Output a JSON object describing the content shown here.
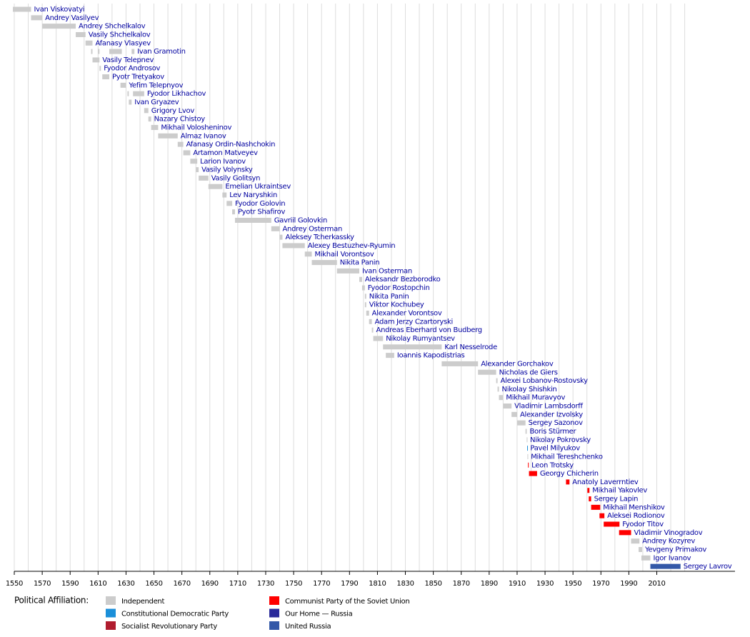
{
  "chart_data": {
    "type": "timeline",
    "xlim": [
      1550,
      2066
    ],
    "xticks": [
      1550,
      1570,
      1590,
      1610,
      1630,
      1650,
      1670,
      1690,
      1710,
      1730,
      1750,
      1770,
      1790,
      1810,
      1830,
      1850,
      1870,
      1890,
      1910,
      1930,
      1950,
      1970,
      1990,
      2010
    ],
    "xgrid": [
      1550,
      1560,
      1570,
      1580,
      1590,
      1600,
      1610,
      1620,
      1630,
      1640,
      1650,
      1660,
      1670,
      1680,
      1690,
      1700,
      1710,
      1720,
      1730,
      1740,
      1750,
      1760,
      1770,
      1780,
      1790,
      1800,
      1810,
      1820,
      1830,
      1840,
      1850,
      1860,
      1870,
      1880,
      1890,
      1900,
      1910,
      1920,
      1930,
      1940,
      1950,
      1960,
      1970,
      1980,
      1990,
      2000,
      2010,
      2020,
      2030
    ],
    "rows": [
      {
        "name": "Ivan Viskovatyi",
        "color": "#cccccc",
        "segments": [
          [
            1549,
            1562
          ]
        ]
      },
      {
        "name": "Andrey Vasilyev",
        "color": "#cccccc",
        "segments": [
          [
            1562,
            1570
          ]
        ]
      },
      {
        "name": "Andrey Shchelkalov",
        "color": "#cccccc",
        "segments": [
          [
            1570,
            1594
          ]
        ]
      },
      {
        "name": "Vasily Shchelkalov",
        "color": "#cccccc",
        "segments": [
          [
            1594,
            1601
          ]
        ]
      },
      {
        "name": "Afanasy Vlasyev",
        "color": "#cccccc",
        "segments": [
          [
            1601,
            1606
          ]
        ]
      },
      {
        "name": "Ivan Gramotin",
        "color": "#cccccc",
        "segments": [
          [
            1605,
            1606
          ],
          [
            1610,
            1611
          ],
          [
            1618,
            1627
          ],
          [
            1634,
            1636
          ]
        ]
      },
      {
        "name": "Vasily Telepnev",
        "color": "#cccccc",
        "segments": [
          [
            1606,
            1611
          ]
        ]
      },
      {
        "name": "Fyodor Androsov",
        "color": "#cccccc",
        "segments": [
          [
            1611,
            1612
          ]
        ]
      },
      {
        "name": "Pyotr Tretyakov",
        "color": "#cccccc",
        "segments": [
          [
            1613,
            1618
          ]
        ]
      },
      {
        "name": "Yefim Telepnyov",
        "color": "#cccccc",
        "segments": [
          [
            1626,
            1630
          ]
        ]
      },
      {
        "name": "Fyodor Likhachov",
        "color": "#cccccc",
        "segments": [
          [
            1631,
            1632
          ],
          [
            1635,
            1643
          ]
        ]
      },
      {
        "name": "Ivan Gryazev",
        "color": "#cccccc",
        "segments": [
          [
            1632,
            1634
          ]
        ]
      },
      {
        "name": "Grigory Lvov",
        "color": "#cccccc",
        "segments": [
          [
            1643,
            1646
          ]
        ]
      },
      {
        "name": "Nazary Chistoy",
        "color": "#cccccc",
        "segments": [
          [
            1646,
            1648
          ]
        ]
      },
      {
        "name": "Mikhail Volosheninov",
        "color": "#cccccc",
        "segments": [
          [
            1648,
            1653
          ]
        ]
      },
      {
        "name": "Almaz Ivanov",
        "color": "#cccccc",
        "segments": [
          [
            1653,
            1667
          ]
        ]
      },
      {
        "name": "Afanasy Ordin-Nashchokin",
        "color": "#cccccc",
        "segments": [
          [
            1667,
            1671
          ]
        ]
      },
      {
        "name": "Artamon Matveyev",
        "color": "#cccccc",
        "segments": [
          [
            1671,
            1676
          ]
        ]
      },
      {
        "name": "Larion Ivanov",
        "color": "#cccccc",
        "segments": [
          [
            1676,
            1681
          ]
        ]
      },
      {
        "name": "Vasily Volynsky",
        "color": "#cccccc",
        "segments": [
          [
            1680,
            1682
          ]
        ]
      },
      {
        "name": "Vasily Golitsyn",
        "color": "#cccccc",
        "segments": [
          [
            1682,
            1689
          ]
        ]
      },
      {
        "name": "Emelian Ukraintsev",
        "color": "#cccccc",
        "segments": [
          [
            1689,
            1699
          ]
        ]
      },
      {
        "name": "Lev Naryshkin",
        "color": "#cccccc",
        "segments": [
          [
            1699,
            1702
          ]
        ]
      },
      {
        "name": "Fyodor Golovin",
        "color": "#cccccc",
        "segments": [
          [
            1702,
            1706
          ]
        ]
      },
      {
        "name": "Pyotr Shafirov",
        "color": "#cccccc",
        "segments": [
          [
            1706,
            1708
          ]
        ]
      },
      {
        "name": "Gavriil Golovkin",
        "color": "#cccccc",
        "segments": [
          [
            1708,
            1734
          ]
        ]
      },
      {
        "name": "Andrey Osterman",
        "color": "#cccccc",
        "segments": [
          [
            1734,
            1740
          ]
        ]
      },
      {
        "name": "Aleksey Tcherkassky",
        "color": "#cccccc",
        "segments": [
          [
            1740,
            1742
          ]
        ]
      },
      {
        "name": "Alexey Bestuzhev-Ryumin",
        "color": "#cccccc",
        "segments": [
          [
            1742,
            1758
          ]
        ]
      },
      {
        "name": "Mikhail Vorontsov",
        "color": "#cccccc",
        "segments": [
          [
            1758,
            1763
          ]
        ]
      },
      {
        "name": "Nikita Panin",
        "color": "#cccccc",
        "segments": [
          [
            1763,
            1781
          ]
        ]
      },
      {
        "name": "Ivan Osterman",
        "color": "#cccccc",
        "segments": [
          [
            1781,
            1797
          ]
        ]
      },
      {
        "name": "Aleksandr Bezborodko",
        "color": "#cccccc",
        "segments": [
          [
            1797,
            1799
          ]
        ]
      },
      {
        "name": "Fyodor Rostopchin",
        "color": "#cccccc",
        "segments": [
          [
            1799,
            1801
          ]
        ]
      },
      {
        "name": "Nikita Panin",
        "color": "#cccccc",
        "segments": [
          [
            1801,
            1802
          ]
        ]
      },
      {
        "name": "Viktor Kochubey",
        "color": "#cccccc",
        "segments": [
          [
            1801,
            1802
          ]
        ]
      },
      {
        "name": "Alexander Vorontsov",
        "color": "#cccccc",
        "segments": [
          [
            1802,
            1804
          ]
        ]
      },
      {
        "name": "Adam Jerzy Czartoryski",
        "color": "#cccccc",
        "segments": [
          [
            1804,
            1806
          ]
        ]
      },
      {
        "name": "Andreas Eberhard von Budberg",
        "color": "#cccccc",
        "segments": [
          [
            1806,
            1807
          ]
        ]
      },
      {
        "name": "Nikolay Rumyantsev",
        "color": "#cccccc",
        "segments": [
          [
            1807,
            1814
          ]
        ]
      },
      {
        "name": "Karl Nesselrode",
        "color": "#cccccc",
        "segments": [
          [
            1814,
            1856
          ]
        ]
      },
      {
        "name": "Ioannis Kapodistrias",
        "color": "#cccccc",
        "segments": [
          [
            1816,
            1822
          ]
        ]
      },
      {
        "name": "Alexander Gorchakov",
        "color": "#cccccc",
        "segments": [
          [
            1856,
            1882
          ]
        ]
      },
      {
        "name": "Nicholas de Giers",
        "color": "#cccccc",
        "segments": [
          [
            1882,
            1895
          ]
        ]
      },
      {
        "name": "Alexei Lobanov-Rostovsky",
        "color": "#cccccc",
        "segments": [
          [
            1895,
            1896
          ]
        ]
      },
      {
        "name": "Nikolay Shishkin",
        "color": "#cccccc",
        "segments": [
          [
            1896,
            1897
          ]
        ]
      },
      {
        "name": "Mikhail Muravyov",
        "color": "#cccccc",
        "segments": [
          [
            1897,
            1900
          ]
        ]
      },
      {
        "name": "Vladimir Lambsdorff",
        "color": "#cccccc",
        "segments": [
          [
            1900,
            1906
          ]
        ]
      },
      {
        "name": "Alexander Izvolsky",
        "color": "#cccccc",
        "segments": [
          [
            1906,
            1910
          ]
        ]
      },
      {
        "name": "Sergey Sazonov",
        "color": "#cccccc",
        "segments": [
          [
            1910,
            1916
          ]
        ]
      },
      {
        "name": "Boris Stürmer",
        "color": "#cccccc",
        "segments": [
          [
            1916,
            1916.9
          ]
        ]
      },
      {
        "name": "Nikolay Pokrovsky",
        "color": "#cccccc",
        "segments": [
          [
            1916.9,
            1917.2
          ]
        ]
      },
      {
        "name": "Pavel Milyukov",
        "color": "#1b8fd9",
        "segments": [
          [
            1917.2,
            1917.4
          ]
        ]
      },
      {
        "name": "Mikhail Tereshchenko",
        "color": "#cccccc",
        "segments": [
          [
            1917.4,
            1917.8
          ]
        ]
      },
      {
        "name": "Leon Trotsky",
        "color": "#ff0000",
        "segments": [
          [
            1917.8,
            1918.3
          ]
        ]
      },
      {
        "name": "Georgy Chicherin",
        "color": "#ff0000",
        "segments": [
          [
            1918.5,
            1924.3
          ]
        ]
      },
      {
        "name": "Anatoly Laverrntiev",
        "color": "#ff0000",
        "segments": [
          [
            1945,
            1947.5
          ]
        ]
      },
      {
        "name": "Mikhail Yakovlev",
        "color": "#ff0000",
        "segments": [
          [
            1960.3,
            1961.8
          ]
        ]
      },
      {
        "name": "Sergey Lapin",
        "color": "#ff0000",
        "segments": [
          [
            1961.3,
            1963
          ]
        ]
      },
      {
        "name": "Mikhail Menshikov",
        "color": "#ff0000",
        "segments": [
          [
            1963,
            1969.5
          ]
        ]
      },
      {
        "name": "Aleksei Rodionov",
        "color": "#ff0000",
        "segments": [
          [
            1969,
            1972.5
          ]
        ]
      },
      {
        "name": "Fyodor Titov",
        "color": "#ff0000",
        "segments": [
          [
            1972,
            1983.3
          ]
        ]
      },
      {
        "name": "Vladimir Vinogradov",
        "color": "#ff0000",
        "segments": [
          [
            1983,
            1991.6
          ]
        ]
      },
      {
        "name": "Andrey Kozyrev",
        "color": "#cccccc",
        "segments": [
          [
            1991.6,
            1997.6
          ]
        ]
      },
      {
        "name": "Yevgeny Primakov",
        "color": "#cccccc",
        "segments": [
          [
            1997,
            1999.5
          ]
        ]
      },
      {
        "name": "Igor Ivanov",
        "color": "#cccccc",
        "segments": [
          [
            1999,
            2005.4
          ]
        ]
      },
      {
        "name": "Sergey Lavrov",
        "color": "#3358a8",
        "segments": [
          [
            2005.4,
            2027
          ]
        ]
      }
    ],
    "legend_title": "Political Affiliation:",
    "parties": [
      {
        "name": "Independent",
        "color": "#cccccc"
      },
      {
        "name": "Constitutional Democratic Party",
        "color": "#1b8fd9"
      },
      {
        "name": "Socialist Revolutionary Party",
        "color": "#b01c2e"
      },
      {
        "name": "Communist Party of the Soviet Union",
        "color": "#ff0000"
      },
      {
        "name": "Our Home — Russia",
        "color": "#2a2a9a"
      },
      {
        "name": "United Russia",
        "color": "#3358a8"
      }
    ]
  }
}
